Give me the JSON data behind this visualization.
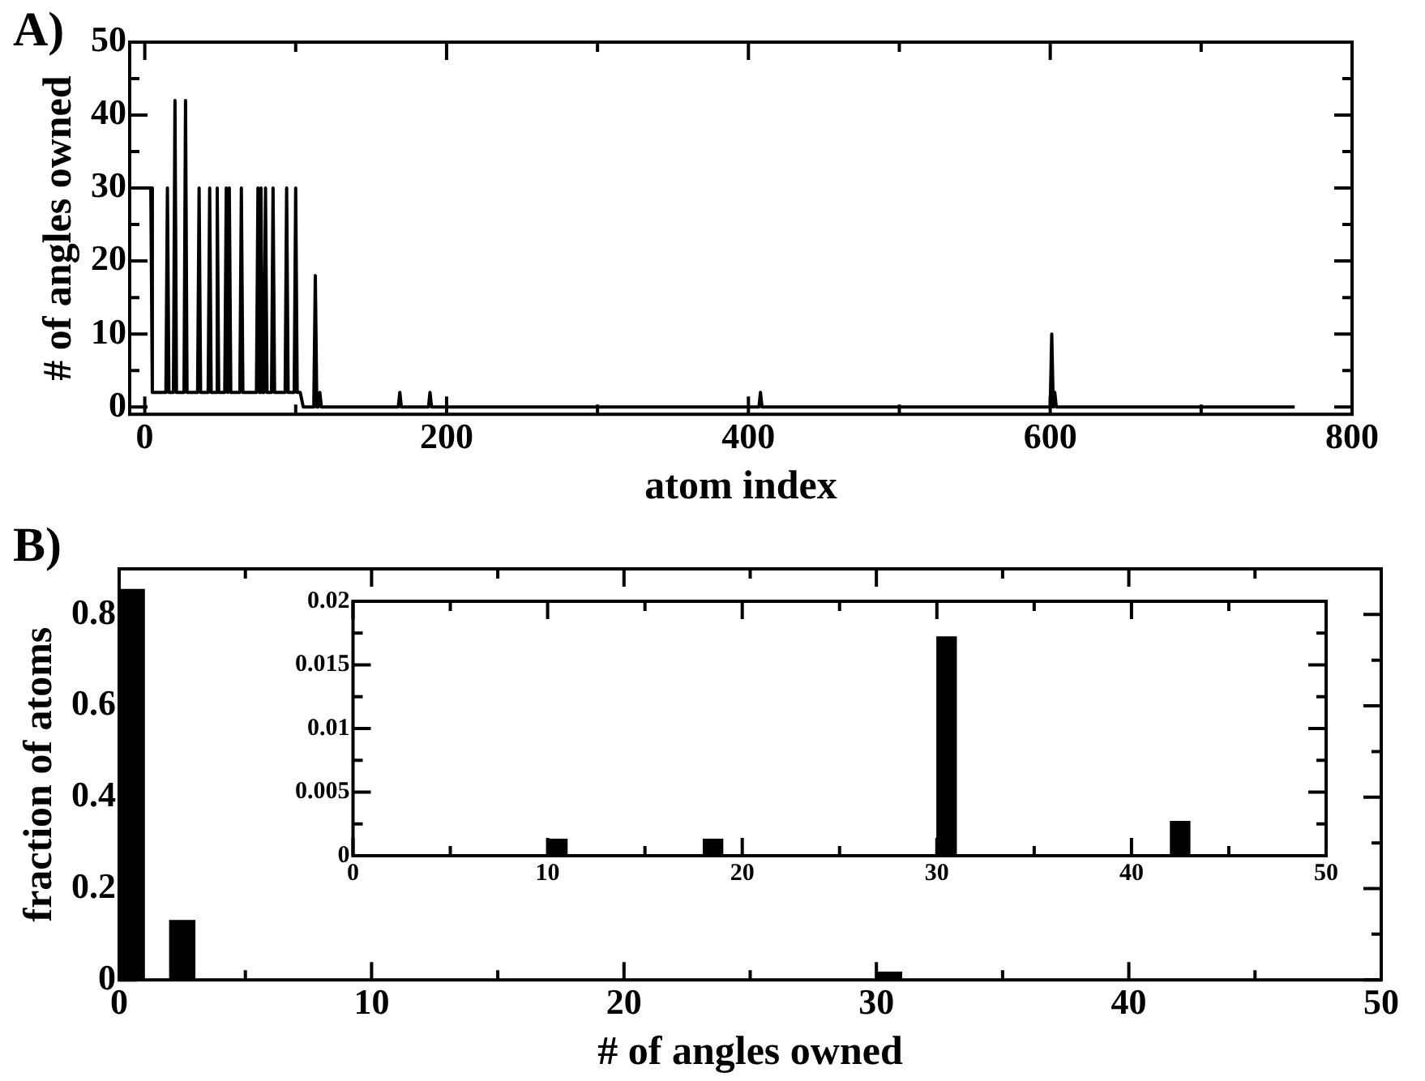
{
  "chart_data": [
    {
      "type": "line",
      "title": "A)",
      "xlabel": "atom index",
      "ylabel": "# of angles owned",
      "xlim": [
        -10,
        800
      ],
      "ylim": [
        -1,
        50
      ],
      "xticks": [
        0,
        {
          "value": 100,
          "label": null
        },
        200,
        {
          "value": 300,
          "label": null
        },
        400,
        {
          "value": 500,
          "label": null
        },
        600,
        {
          "value": 700,
          "label": null
        },
        800
      ],
      "yticks": [
        0,
        {
          "value": 5,
          "label": null
        },
        10,
        {
          "value": 15,
          "label": null
        },
        20,
        {
          "value": 25,
          "label": null
        },
        30,
        {
          "value": 35,
          "label": null
        },
        40,
        {
          "value": 45,
          "label": null
        },
        50
      ],
      "series": [
        {
          "color": "#000000",
          "x": [
            0,
            4,
            5,
            14,
            15,
            16,
            19,
            20,
            21,
            26,
            27,
            28,
            35,
            36,
            37,
            42,
            43,
            44,
            47,
            48,
            49,
            53,
            54,
            55,
            56,
            57,
            63,
            64,
            65,
            74,
            75,
            76,
            77,
            78,
            79,
            80,
            81,
            84,
            85,
            86,
            93,
            94,
            95,
            99,
            100,
            101,
            103,
            105,
            112,
            113,
            114,
            115,
            116,
            117,
            168,
            169,
            170,
            188,
            189,
            190,
            407,
            408,
            409,
            600,
            601,
            602,
            603,
            604,
            762
          ],
          "values": [
            30,
            30,
            2,
            2,
            30,
            2,
            2,
            42,
            2,
            2,
            42,
            2,
            2,
            30,
            2,
            2,
            30,
            2,
            2,
            30,
            2,
            2,
            30,
            2,
            30,
            2,
            2,
            30,
            2,
            2,
            30,
            2,
            30,
            2,
            2,
            30,
            2,
            2,
            30,
            2,
            2,
            30,
            2,
            2,
            30,
            2,
            2,
            0,
            0,
            18,
            0,
            0,
            2,
            0,
            0,
            2,
            0,
            0,
            2,
            0,
            0,
            2,
            0,
            0,
            10,
            0,
            2,
            0,
            0
          ]
        }
      ]
    },
    {
      "type": "histogram",
      "title": "B)",
      "xlabel": "# of angles owned",
      "ylabel": "fraction of atoms",
      "color": "#000000",
      "xlim": [
        0,
        50
      ],
      "ylim": [
        0,
        0.9
      ],
      "xticks": [
        0,
        {
          "value": 5,
          "label": null
        },
        10,
        {
          "value": 15,
          "label": null
        },
        20,
        {
          "value": 25,
          "label": null
        },
        30,
        {
          "value": 35,
          "label": null
        },
        40,
        {
          "value": 45,
          "label": null
        },
        50
      ],
      "yticks": [
        0,
        {
          "value": 0.1,
          "label": null
        },
        0.2,
        {
          "value": 0.3,
          "label": null
        },
        0.4,
        {
          "value": 0.5,
          "label": null
        },
        0.6,
        {
          "value": 0.7,
          "label": null
        },
        0.8
      ],
      "bins": [
        0,
        1,
        2,
        3,
        4,
        5,
        6,
        7,
        8,
        9,
        10,
        11,
        12,
        13,
        14,
        15,
        16,
        17,
        18,
        19,
        20,
        21,
        22,
        23,
        24,
        25,
        26,
        27,
        28,
        29,
        30,
        31,
        32,
        33,
        34,
        35,
        36,
        37,
        38,
        39,
        40,
        41,
        42,
        43
      ],
      "values": [
        0.855,
        0,
        0.13,
        0,
        0,
        0,
        0,
        0,
        0,
        0,
        null,
        0,
        0,
        0,
        0,
        0,
        0,
        0,
        null,
        0,
        0,
        0,
        0,
        0,
        0,
        0,
        0,
        0,
        0,
        0,
        0.017,
        0,
        0,
        0,
        0,
        0,
        0,
        0,
        0,
        0,
        0,
        0,
        null
      ]
    },
    {
      "type": "histogram",
      "color": "#000000",
      "xlim": [
        0,
        50
      ],
      "ylim": [
        0,
        0.02
      ],
      "xticks": [
        0,
        {
          "value": 5,
          "label": null
        },
        10,
        {
          "value": 15,
          "label": null
        },
        20,
        {
          "value": 25,
          "label": null
        },
        30,
        {
          "value": 35,
          "label": null
        },
        40,
        {
          "value": 45,
          "label": null
        },
        50
      ],
      "yticks": [
        0,
        {
          "value": 0.0025,
          "label": null
        },
        0.005,
        {
          "value": 0.0075,
          "label": null
        },
        0.01,
        {
          "value": 0.0125,
          "label": null
        },
        0.015,
        {
          "value": 0.0175,
          "label": null
        },
        0.02
      ],
      "bins": [
        0,
        1,
        2,
        3,
        4,
        5,
        6,
        7,
        8,
        9,
        10,
        11,
        12,
        13,
        14,
        15,
        16,
        17,
        18,
        19,
        20,
        21,
        22,
        23,
        24,
        25,
        26,
        27,
        28,
        29,
        30,
        31,
        32,
        33,
        34,
        35,
        36,
        37,
        38,
        39,
        40,
        41,
        42,
        43
      ],
      "values": [
        null,
        0,
        null,
        0,
        0,
        0,
        0,
        0,
        0,
        0,
        0.0013,
        0,
        0,
        0,
        0,
        0,
        0,
        0,
        0.0013,
        0,
        0,
        0,
        0,
        0,
        0,
        0,
        0,
        0,
        0,
        0,
        0.0172,
        0,
        0,
        0,
        0,
        0,
        0,
        0,
        0,
        0,
        0,
        0,
        0.0027
      ]
    }
  ]
}
